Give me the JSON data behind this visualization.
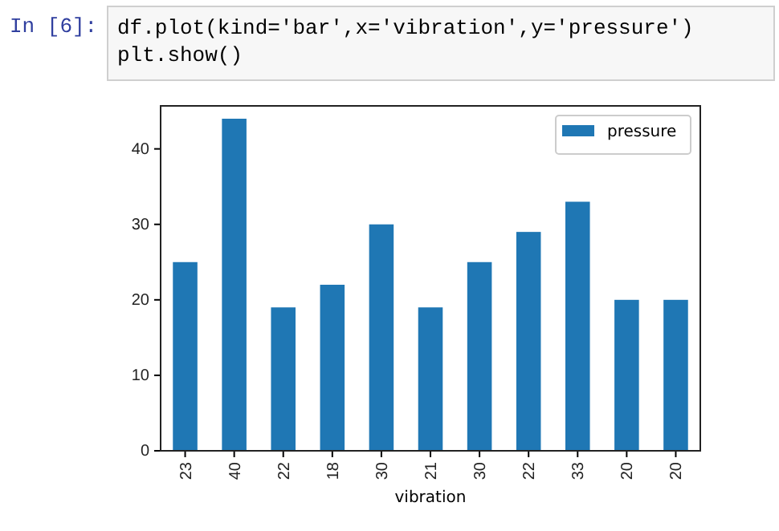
{
  "chart_data": {
    "type": "bar",
    "categories": [
      "23",
      "40",
      "22",
      "18",
      "30",
      "21",
      "30",
      "22",
      "33",
      "20",
      "20"
    ],
    "series": [
      {
        "name": "pressure",
        "color": "#1f77b4",
        "values": [
          25,
          44,
          19,
          22,
          30,
          19,
          25,
          29,
          33,
          20,
          20
        ]
      }
    ],
    "xlabel": "vibration",
    "ylim": [
      0,
      45.7
    ],
    "yticks": [
      0,
      10,
      20,
      30,
      40
    ],
    "legend": "top right",
    "grid": false,
    "annotations": [
      "In [6]:",
      "df.plot(kind='bar',x='vibration',y='pressure')",
      "plt.show()"
    ]
  }
}
